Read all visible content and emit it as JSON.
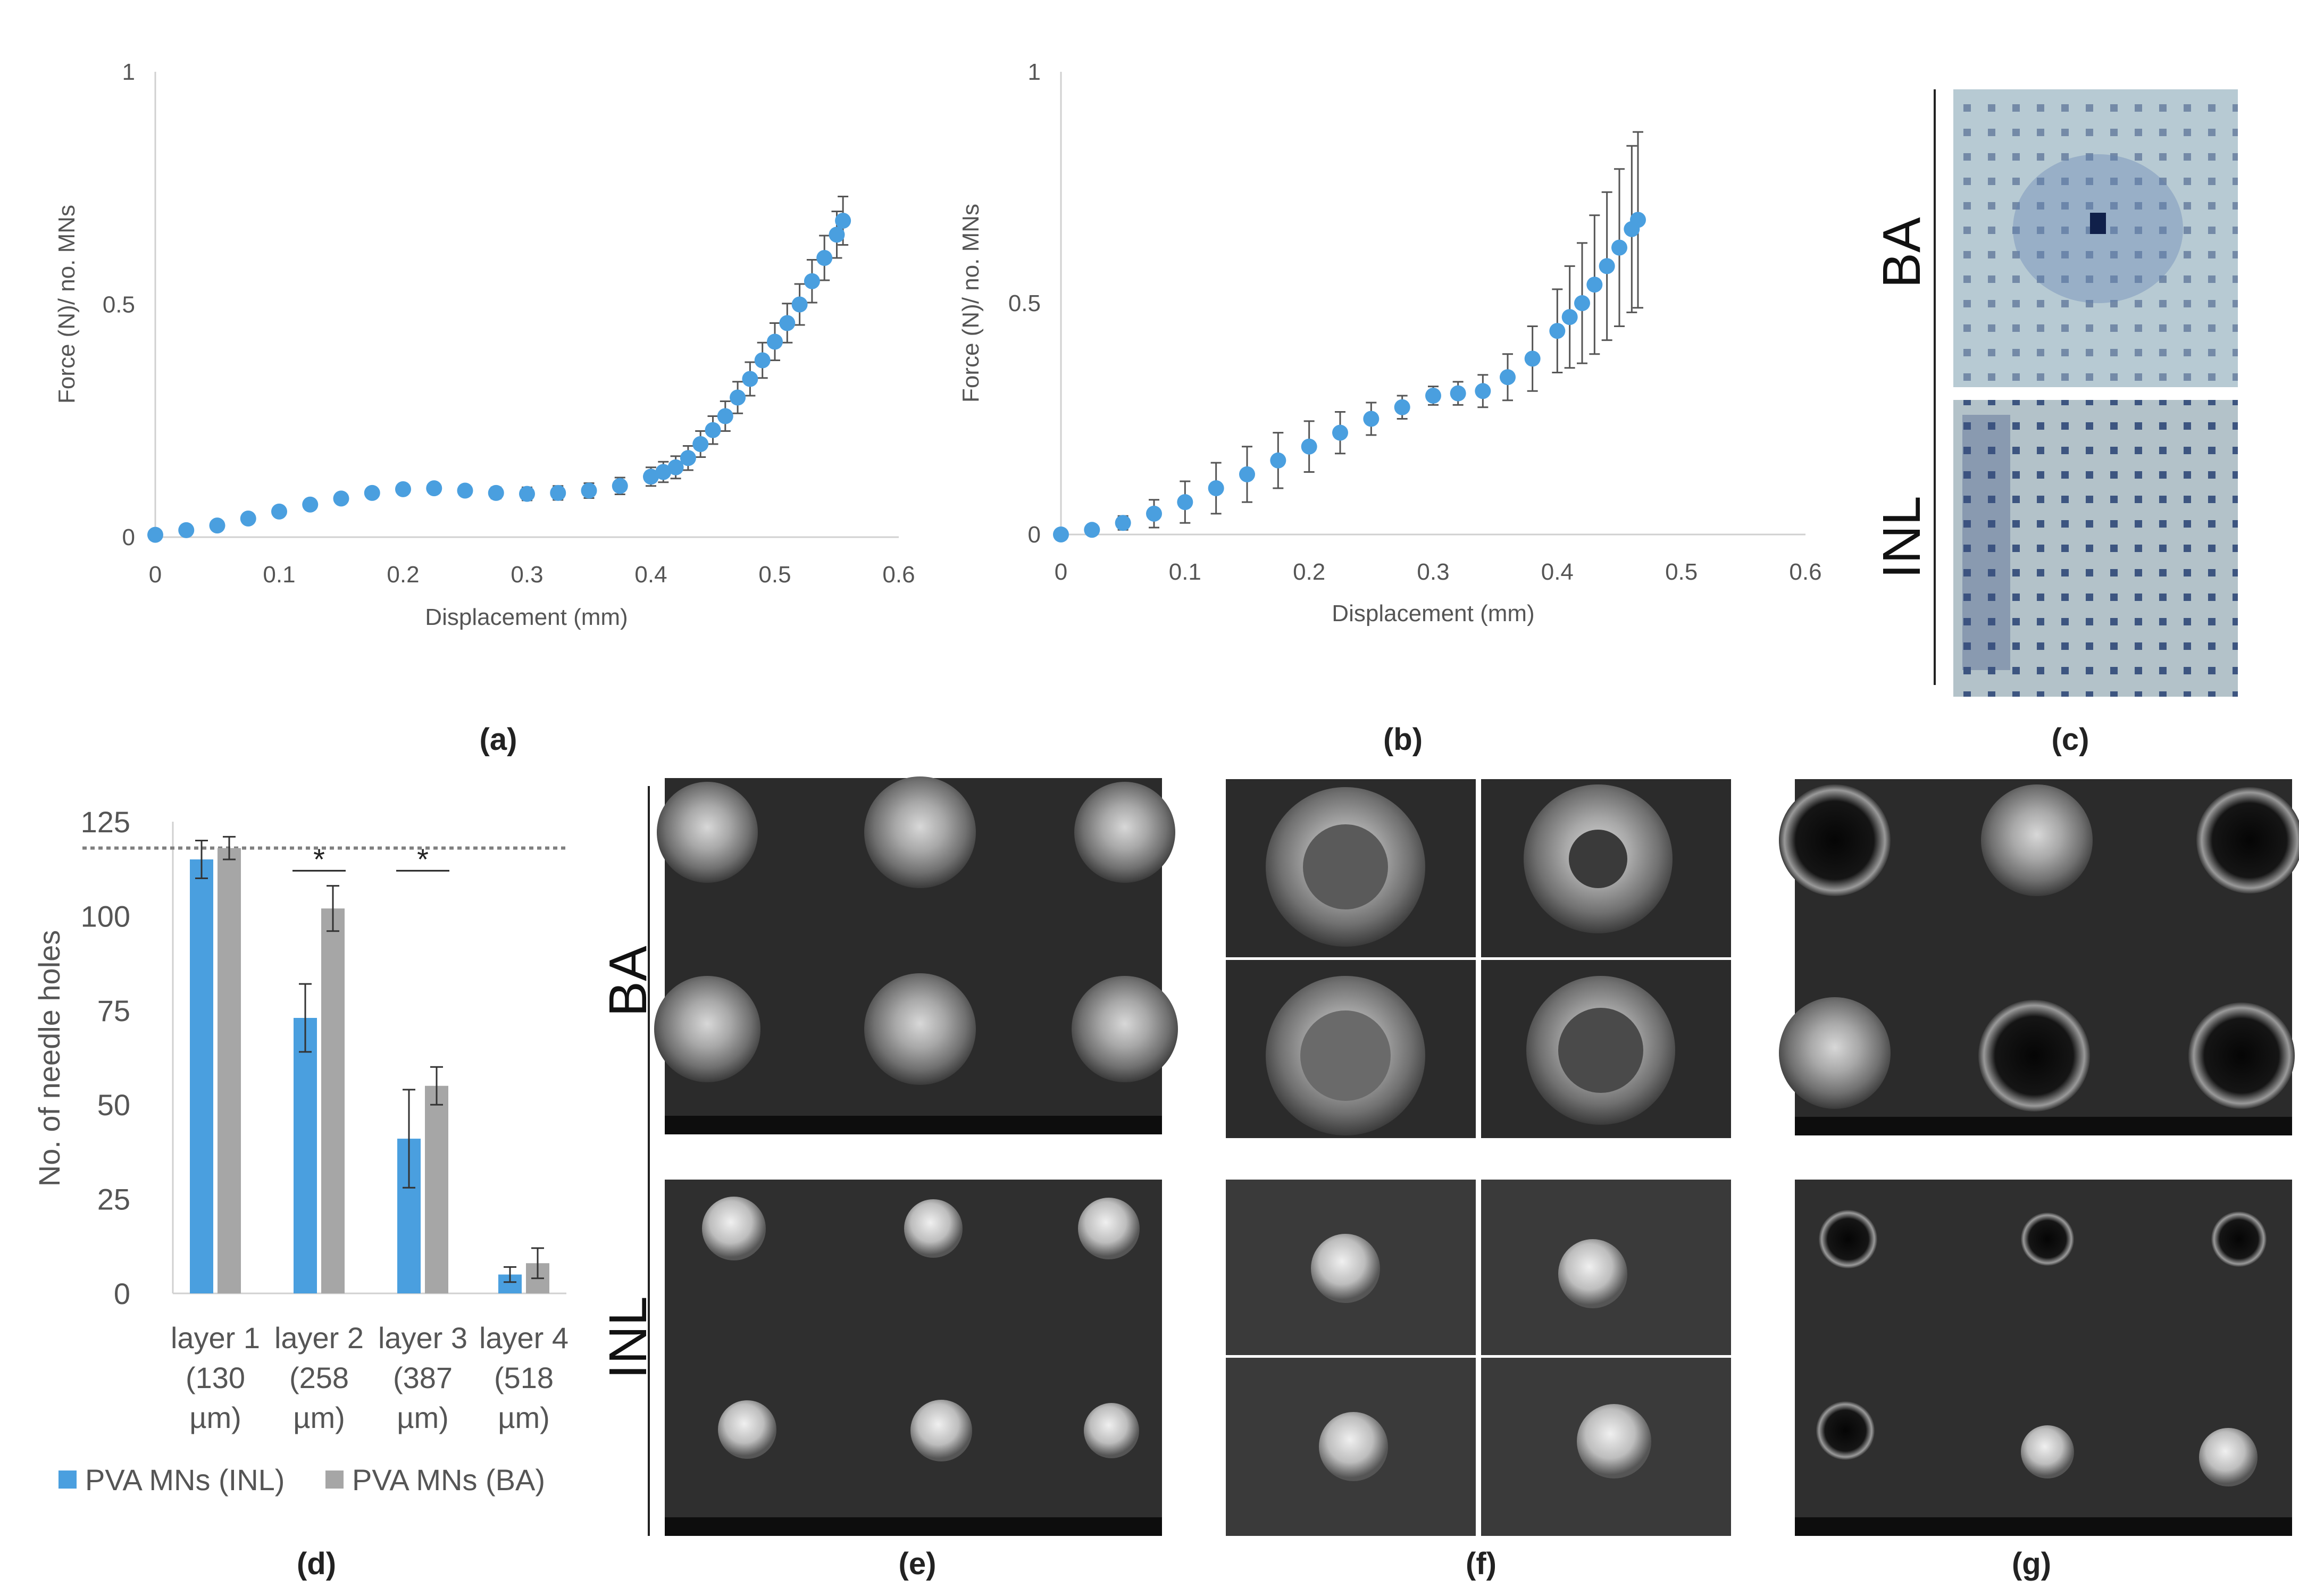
{
  "panel_labels": [
    "(a)",
    "(b)",
    "(c)",
    "(d)",
    "(e)",
    "(f)",
    "(g)"
  ],
  "side_labels": {
    "ba": "BA",
    "inl": "INL"
  },
  "colors": {
    "inl_series": "#4a9fdf",
    "ba_series": "#a6a6a6",
    "error_bar": "#555555",
    "reference_line": "#808080"
  },
  "image_panels": [
    {
      "panel": "(c)",
      "content": "optical images of stained skin: BA top, INL bottom"
    },
    {
      "panel": "(e)",
      "content": "SEM micrographs: BA row, INL row"
    },
    {
      "panel": "(f)",
      "content": "SEM micrographs, 2x2 grid per row"
    },
    {
      "panel": "(g)",
      "content": "SEM micrographs: BA row, INL row"
    }
  ],
  "chart_data": [
    {
      "panel": "(a)",
      "type": "line",
      "title": "",
      "xlabel": "Displacement (mm)",
      "ylabel": "Force (N)/ no. MNs",
      "xlim": [
        0,
        0.6
      ],
      "ylim": [
        0,
        1
      ],
      "xticks": [
        "0",
        "0.1",
        "0.2",
        "0.3",
        "0.4",
        "0.5",
        "0.6"
      ],
      "yticks": [
        "0",
        "0.5",
        "1"
      ],
      "grid": false,
      "series": [
        {
          "x": [
            0,
            0.025,
            0.05,
            0.075,
            0.1,
            0.125,
            0.15,
            0.175,
            0.2,
            0.225,
            0.25,
            0.275,
            0.3,
            0.325,
            0.35,
            0.375,
            0.4,
            0.41,
            0.42,
            0.43,
            0.44,
            0.45,
            0.46,
            0.47,
            0.48,
            0.49,
            0.5,
            0.51,
            0.52,
            0.53,
            0.54,
            0.55,
            0.555
          ],
          "y": [
            0.005,
            0.015,
            0.025,
            0.04,
            0.055,
            0.07,
            0.083,
            0.095,
            0.103,
            0.105,
            0.1,
            0.095,
            0.093,
            0.095,
            0.1,
            0.11,
            0.13,
            0.14,
            0.15,
            0.17,
            0.2,
            0.23,
            0.26,
            0.3,
            0.34,
            0.38,
            0.42,
            0.46,
            0.5,
            0.55,
            0.6,
            0.65,
            0.68
          ],
          "error": [
            0,
            0.003,
            0.003,
            0.004,
            0.005,
            0.006,
            0.007,
            0.008,
            0.008,
            0.009,
            0.01,
            0.012,
            0.014,
            0.015,
            0.016,
            0.018,
            0.02,
            0.022,
            0.024,
            0.026,
            0.028,
            0.03,
            0.032,
            0.034,
            0.036,
            0.038,
            0.04,
            0.042,
            0.044,
            0.046,
            0.048,
            0.05,
            0.052
          ]
        }
      ]
    },
    {
      "panel": "(b)",
      "type": "line",
      "title": "",
      "xlabel": "Displacement (mm)",
      "ylabel": "Force (N)/ no. MNs",
      "xlim": [
        0,
        0.6
      ],
      "ylim": [
        0,
        1
      ],
      "xticks": [
        "0",
        "0.1",
        "0.2",
        "0.3",
        "0.4",
        "0.5",
        "0.6"
      ],
      "yticks": [
        "0",
        "0.5",
        "1"
      ],
      "grid": false,
      "series": [
        {
          "x": [
            0,
            0.025,
            0.05,
            0.075,
            0.1,
            0.125,
            0.15,
            0.175,
            0.2,
            0.225,
            0.25,
            0.275,
            0.3,
            0.32,
            0.34,
            0.36,
            0.38,
            0.4,
            0.41,
            0.42,
            0.43,
            0.44,
            0.45,
            0.46,
            0.465
          ],
          "y": [
            0,
            0.01,
            0.025,
            0.045,
            0.07,
            0.1,
            0.13,
            0.16,
            0.19,
            0.22,
            0.25,
            0.275,
            0.3,
            0.305,
            0.31,
            0.34,
            0.38,
            0.44,
            0.47,
            0.5,
            0.54,
            0.58,
            0.62,
            0.66,
            0.68
          ]
        }
      ],
      "error": [
        0,
        0.005,
        0.015,
        0.03,
        0.045,
        0.055,
        0.06,
        0.06,
        0.055,
        0.045,
        0.035,
        0.025,
        0.02,
        0.025,
        0.035,
        0.05,
        0.07,
        0.09,
        0.11,
        0.13,
        0.15,
        0.16,
        0.17,
        0.18,
        0.19
      ]
    },
    {
      "panel": "(d)",
      "type": "bar",
      "title": "",
      "xlabel": "",
      "ylabel": "No. of needle holes",
      "ylim": [
        0,
        125
      ],
      "yticks": [
        "0",
        "25",
        "50",
        "75",
        "100",
        "125"
      ],
      "categories": [
        [
          "layer 1",
          "(130",
          "µm)"
        ],
        [
          "layer 2",
          "(258",
          "µm)"
        ],
        [
          "layer 3",
          "(387",
          "µm)"
        ],
        [
          "layer 4",
          "(518",
          "µm)"
        ]
      ],
      "series": [
        {
          "name": "PVA MNs (INL)",
          "values": [
            115,
            73,
            41,
            5
          ],
          "error": [
            5,
            9,
            13,
            2
          ]
        },
        {
          "name": "PVA MNs (BA)",
          "values": [
            118,
            102,
            55,
            8
          ],
          "error": [
            3,
            6,
            5,
            4
          ]
        }
      ],
      "reference_line": 118,
      "significance": [
        {
          "between": "layer 2",
          "mark": "*"
        },
        {
          "between": "layer 3",
          "mark": "*"
        }
      ],
      "legend_position": "bottom"
    }
  ]
}
